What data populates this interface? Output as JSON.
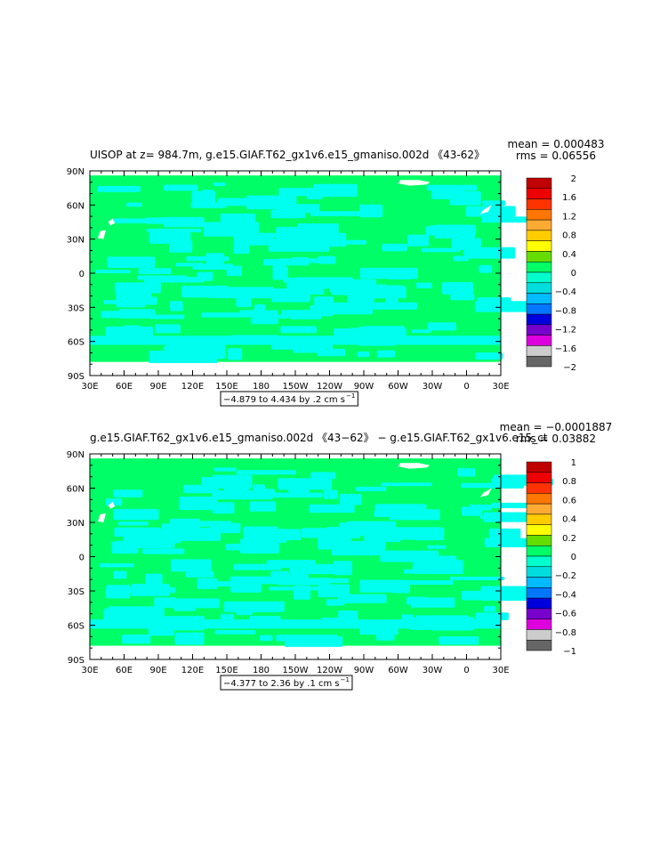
{
  "chart_data": [
    {
      "type": "heatmap",
      "title": "UISOP at z= 984.7m, g.e15.GIAF.T62_gx1v6.e15_gmaniso.002d 《43-62》",
      "stats": {
        "mean": "mean = 0.000483",
        "rms": "rms = 0.06556"
      },
      "y_ticks": [
        "90N",
        "60N",
        "30N",
        "0",
        "30S",
        "60S",
        "90S"
      ],
      "x_ticks": [
        "30E",
        "60E",
        "90E",
        "120E",
        "150E",
        "180",
        "150W",
        "120W",
        "90W",
        "60W",
        "30W",
        "0",
        "30E"
      ],
      "xlim": [
        30,
        390
      ],
      "ylim": [
        -90,
        90
      ],
      "range_label": "−4.879 to 4.434 by .2 cm s",
      "range_exp": "−1",
      "legend_labels": [
        "2",
        "1.6",
        "1.2",
        "0.8",
        "0.4",
        "0",
        "−0.4",
        "−0.8",
        "−1.2",
        "−1.6",
        "−2"
      ],
      "legend_colors": [
        "#c00000",
        "#ee0000",
        "#ff3300",
        "#ff7700",
        "#ffaa33",
        "#ffcc00",
        "#ffff00",
        "#66dd00",
        "#00ff66",
        "#00ffcc",
        "#00dddd",
        "#00bbff",
        "#0077ff",
        "#0000dd",
        "#7700cc",
        "#dd00dd",
        "#cccccc",
        "#666666"
      ]
    },
    {
      "type": "heatmap",
      "title": "g.e15.GIAF.T62_gx1v6.e15_gmaniso.002d 《43−62》 − g.e15.GIAF.T62_gx1v6.e15_ct",
      "stats": {
        "mean": "mean = −0.0001887",
        "rms": "rms = 0.03882"
      },
      "y_ticks": [
        "90N",
        "60N",
        "30N",
        "0",
        "30S",
        "60S",
        "90S"
      ],
      "x_ticks": [
        "30E",
        "60E",
        "90E",
        "120E",
        "150E",
        "180",
        "150W",
        "120W",
        "90W",
        "60W",
        "30W",
        "0",
        "30E"
      ],
      "xlim": [
        30,
        390
      ],
      "ylim": [
        -90,
        90
      ],
      "range_label": "−4.377 to 2.36 by .1 cm s",
      "range_exp": "−1",
      "legend_labels": [
        "1",
        "0.8",
        "0.6",
        "0.4",
        "0.2",
        "0",
        "−0.2",
        "−0.4",
        "−0.6",
        "−0.8",
        "−1"
      ],
      "legend_colors": [
        "#c00000",
        "#ee0000",
        "#ff3300",
        "#ff7700",
        "#ffaa33",
        "#ffcc00",
        "#ffff00",
        "#66dd00",
        "#00ff66",
        "#00ffcc",
        "#00dddd",
        "#00bbff",
        "#0077ff",
        "#0000dd",
        "#7700cc",
        "#dd00dd",
        "#cccccc",
        "#666666"
      ]
    }
  ],
  "colors": {
    "field_zero": "#00ff66",
    "field_neg": "#00ffee",
    "land": "#ffffff",
    "axis": "#000000"
  }
}
